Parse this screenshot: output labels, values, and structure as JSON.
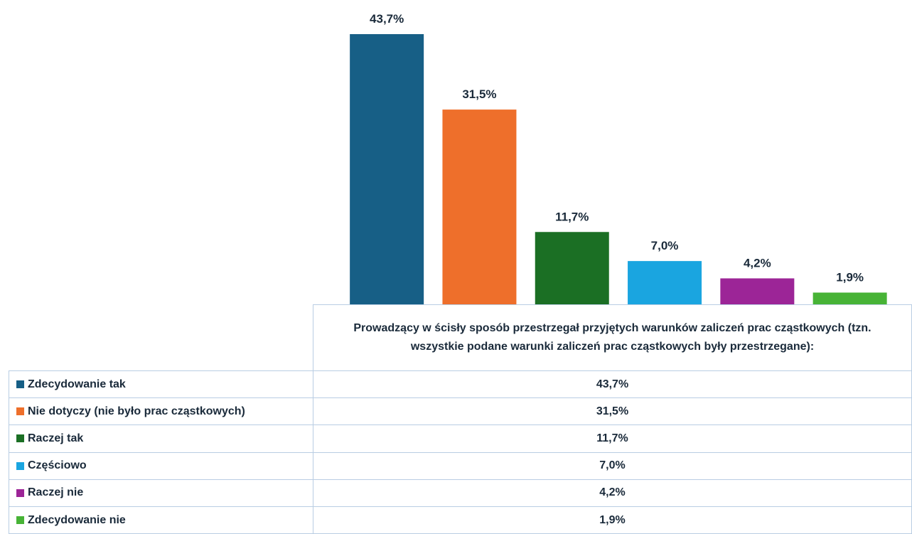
{
  "chart_data": {
    "type": "bar",
    "categories": [
      "Prowadzący w ścisły sposób przestrzegał przyjętych warunków zaliczeń prac cząstkowych (tzn. wszystkie podane warunki zaliczeń prac cząstkowych były przestrzegane):"
    ],
    "series": [
      {
        "name": "Zdecydowanie tak",
        "color": "#175f86",
        "values": [
          43.7
        ],
        "value_labels": [
          "43,7%"
        ]
      },
      {
        "name": "Nie dotyczy (nie było prac cząstkowych)",
        "color": "#ee6f2b",
        "values": [
          31.5
        ],
        "value_labels": [
          "31,5%"
        ]
      },
      {
        "name": "Raczej tak",
        "color": "#1b6f24",
        "values": [
          11.7
        ],
        "value_labels": [
          "11,7%"
        ]
      },
      {
        "name": "Częściowo",
        "color": "#1aa5e0",
        "values": [
          7.0
        ],
        "value_labels": [
          "7,0%"
        ]
      },
      {
        "name": "Raczej nie",
        "color": "#9c2597",
        "values": [
          4.2
        ],
        "value_labels": [
          "4,2%"
        ]
      },
      {
        "name": "Zdecydowanie nie",
        "color": "#47b336",
        "values": [
          1.9
        ],
        "value_labels": [
          "1,9%"
        ]
      }
    ]
  }
}
